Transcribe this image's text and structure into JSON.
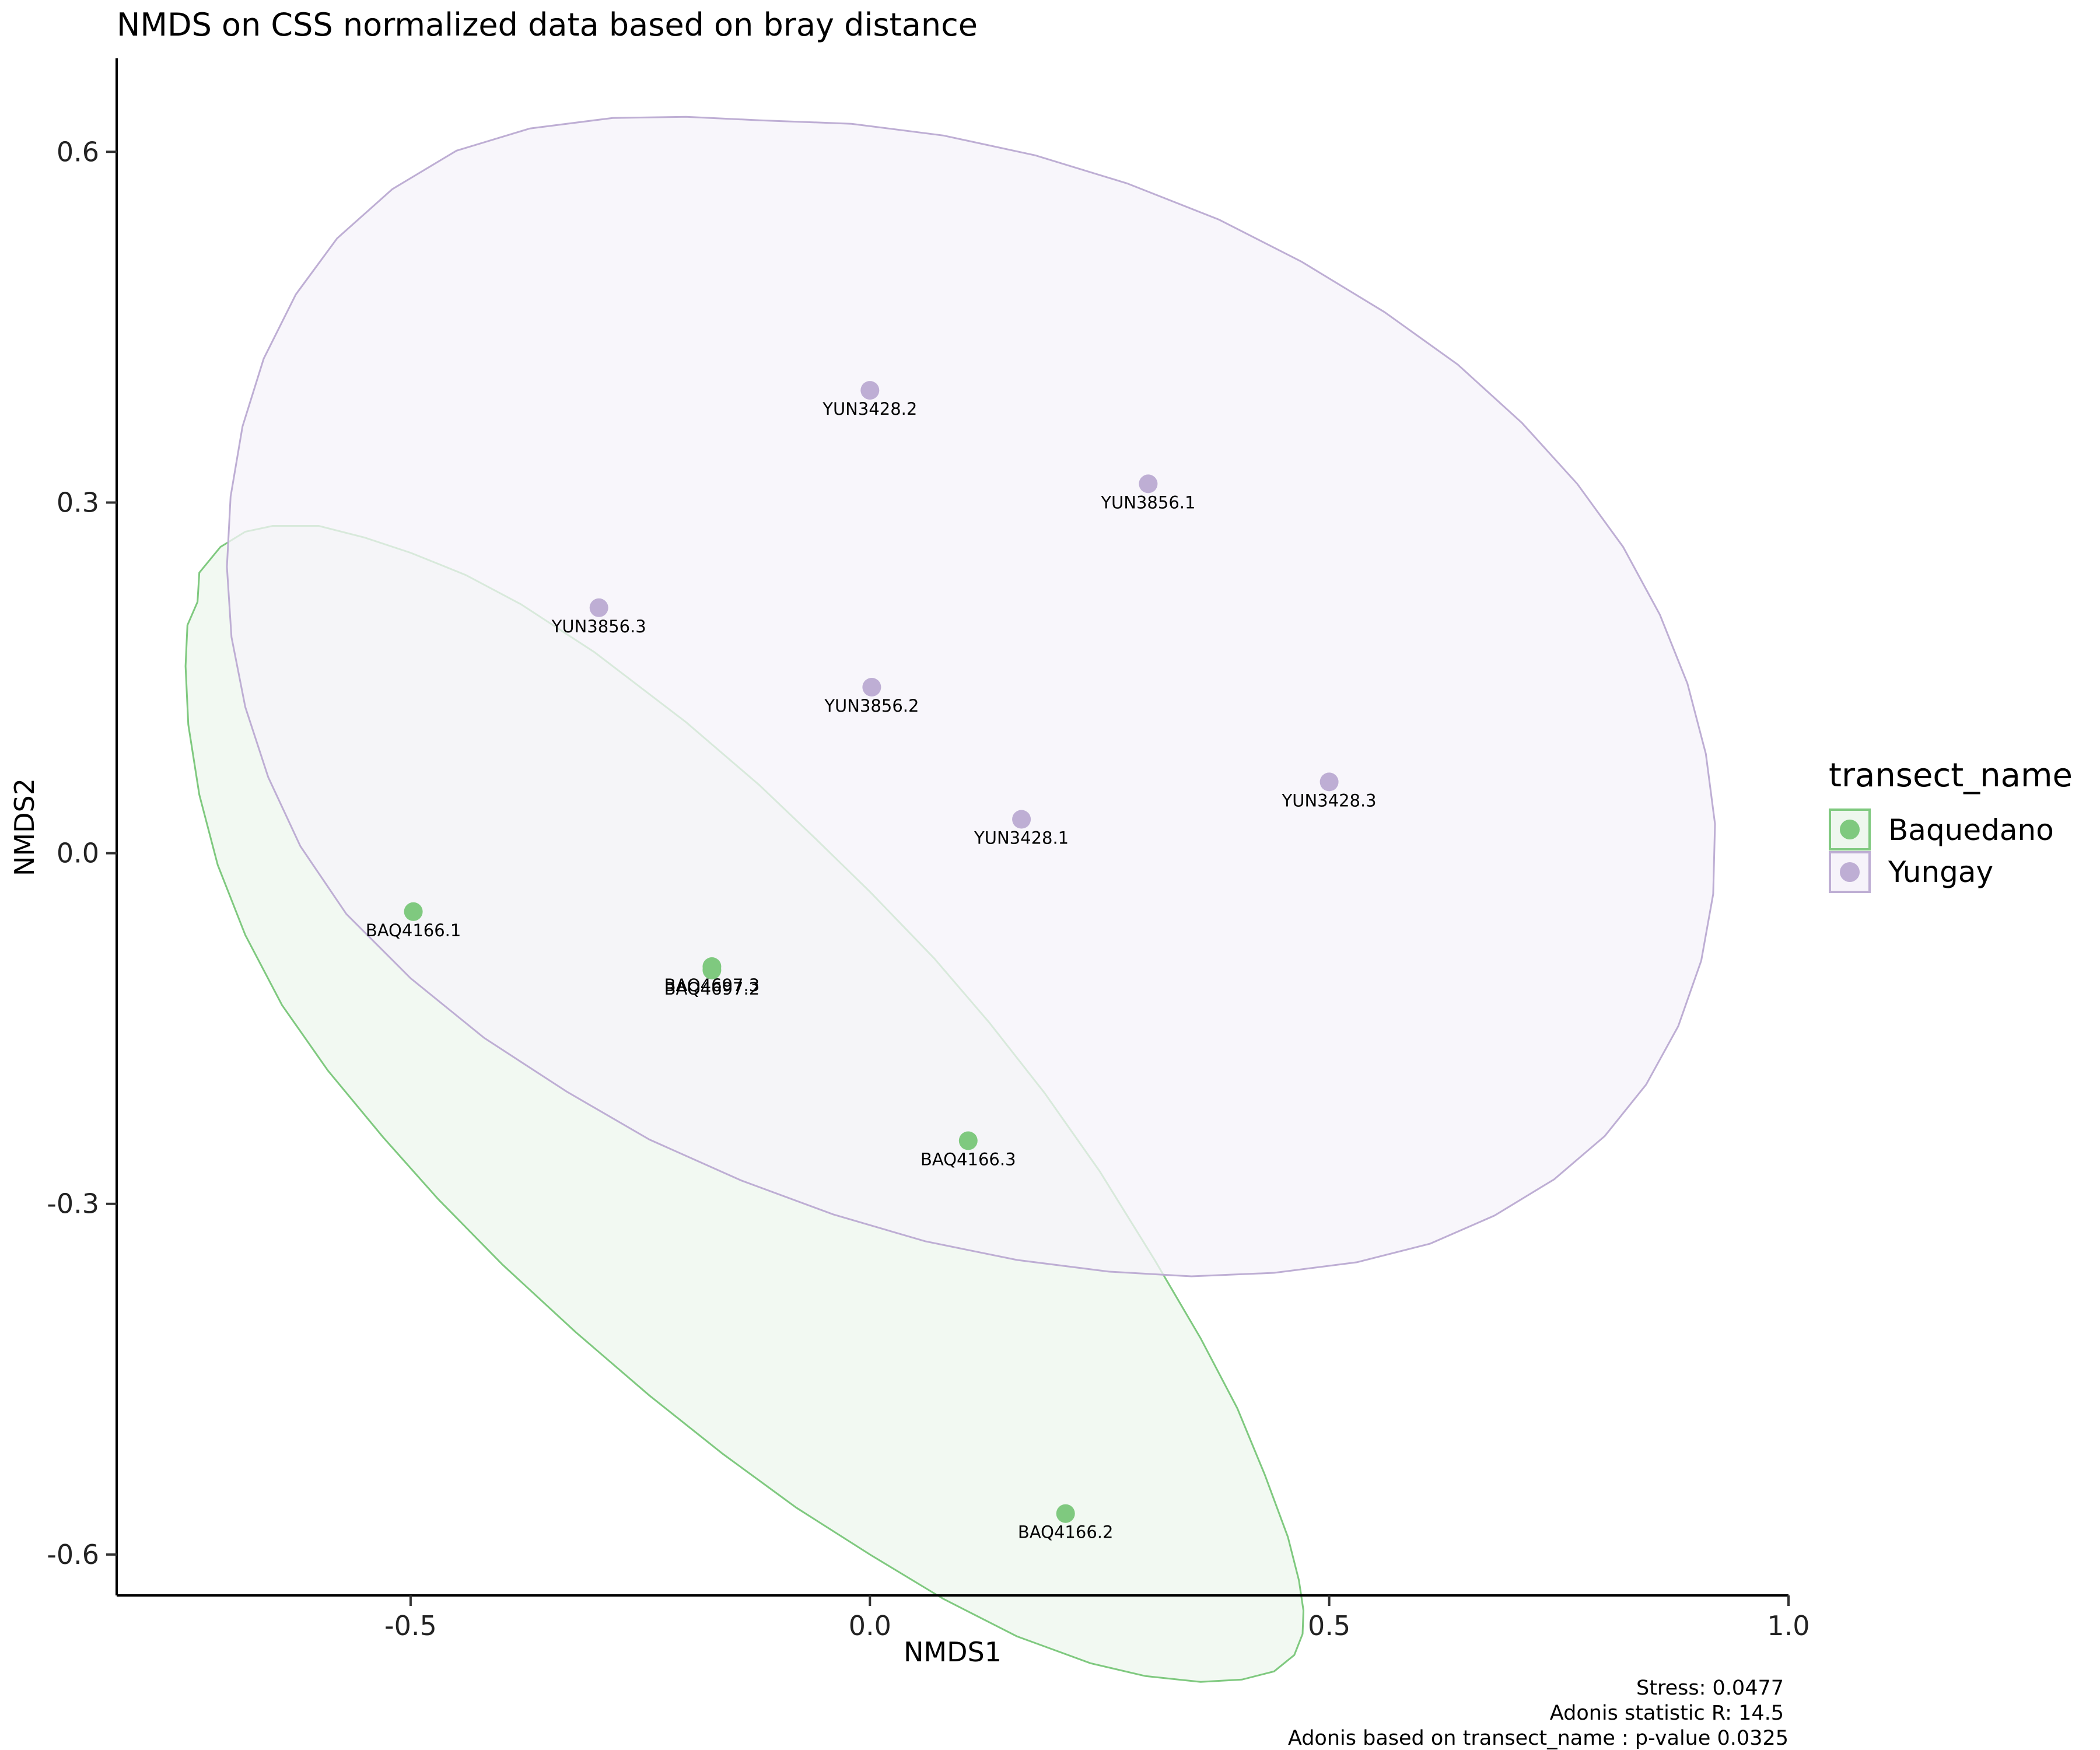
{
  "chart_data": {
    "type": "scatter",
    "title": "NMDS on CSS normalized data based on bray distance",
    "xlabel": "NMDS1",
    "ylabel": "NMDS2",
    "xlim": [
      -0.82,
      1.0
    ],
    "ylim": [
      -0.635,
      0.68
    ],
    "xticks": [
      -0.5,
      0.0,
      0.5,
      1.0
    ],
    "xtick_labels": [
      "-0.5",
      "0.0",
      "0.5",
      "1.0"
    ],
    "yticks": [
      -0.6,
      -0.3,
      0.0,
      0.3,
      0.6
    ],
    "ytick_labels": [
      "-0.6",
      "-0.3",
      "0.0",
      "0.3",
      "0.6"
    ],
    "grid": false,
    "legend": {
      "title": "transect_name",
      "placement": "right",
      "entries": [
        "Baquedano",
        "Yungay"
      ]
    },
    "series": [
      {
        "name": "Baquedano",
        "color": "#7fc97f",
        "fill": "#eef7ee",
        "points": [
          {
            "label": "BAQ4166.1",
            "x": -0.497,
            "y": -0.05
          },
          {
            "label": "BAQ4697.3",
            "x": -0.172,
            "y": -0.097
          },
          {
            "label": "BAQ4697.2",
            "x": -0.172,
            "y": -0.1
          },
          {
            "label": "BAQ4166.3",
            "x": 0.107,
            "y": -0.246
          },
          {
            "label": "BAQ4166.2",
            "x": 0.213,
            "y": -0.565
          }
        ],
        "ellipse": [
          [
            -0.732,
            0.215
          ],
          [
            -0.73,
            0.24
          ],
          [
            -0.707,
            0.262
          ],
          [
            -0.68,
            0.275
          ],
          [
            -0.65,
            0.28
          ],
          [
            -0.6,
            0.28
          ],
          [
            -0.55,
            0.27
          ],
          [
            -0.5,
            0.257
          ],
          [
            -0.44,
            0.238
          ],
          [
            -0.38,
            0.213
          ],
          [
            -0.3,
            0.172
          ],
          [
            -0.2,
            0.112
          ],
          [
            -0.12,
            0.058
          ],
          [
            -0.06,
            0.013
          ],
          [
            0.0,
            -0.033
          ],
          [
            0.07,
            -0.09
          ],
          [
            0.13,
            -0.145
          ],
          [
            0.19,
            -0.205
          ],
          [
            0.25,
            -0.272
          ],
          [
            0.31,
            -0.348
          ],
          [
            0.36,
            -0.415
          ],
          [
            0.4,
            -0.475
          ],
          [
            0.43,
            -0.532
          ],
          [
            0.455,
            -0.585
          ],
          [
            0.467,
            -0.622
          ],
          [
            0.472,
            -0.648
          ],
          [
            0.471,
            -0.668
          ],
          [
            0.462,
            -0.686
          ],
          [
            0.44,
            -0.7
          ],
          [
            0.405,
            -0.707
          ],
          [
            0.36,
            -0.709
          ],
          [
            0.3,
            -0.704
          ],
          [
            0.24,
            -0.693
          ],
          [
            0.16,
            -0.67
          ],
          [
            0.08,
            -0.638
          ],
          [
            0.0,
            -0.6
          ],
          [
            -0.08,
            -0.56
          ],
          [
            -0.16,
            -0.514
          ],
          [
            -0.24,
            -0.464
          ],
          [
            -0.32,
            -0.41
          ],
          [
            -0.4,
            -0.352
          ],
          [
            -0.47,
            -0.296
          ],
          [
            -0.53,
            -0.243
          ],
          [
            -0.59,
            -0.186
          ],
          [
            -0.64,
            -0.13
          ],
          [
            -0.68,
            -0.07
          ],
          [
            -0.71,
            -0.01
          ],
          [
            -0.73,
            0.05
          ],
          [
            -0.742,
            0.11
          ],
          [
            -0.745,
            0.16
          ],
          [
            -0.743,
            0.195
          ]
        ]
      },
      {
        "name": "Yungay",
        "color": "#beaed4",
        "fill": "#f6f3fa",
        "points": [
          {
            "label": "YUN3428.2",
            "x": 0.0,
            "y": 0.396
          },
          {
            "label": "YUN3856.1",
            "x": 0.303,
            "y": 0.316
          },
          {
            "label": "YUN3856.3",
            "x": -0.295,
            "y": 0.21
          },
          {
            "label": "YUN3856.2",
            "x": 0.002,
            "y": 0.142
          },
          {
            "label": "YUN3428.3",
            "x": 0.5,
            "y": 0.061
          },
          {
            "label": "YUN3428.1",
            "x": 0.165,
            "y": 0.029
          }
        ],
        "ellipse": [
          [
            -0.12,
            0.627
          ],
          [
            -0.02,
            0.624
          ],
          [
            0.08,
            0.614
          ],
          [
            0.18,
            0.597
          ],
          [
            0.28,
            0.573
          ],
          [
            0.38,
            0.542
          ],
          [
            0.47,
            0.506
          ],
          [
            0.56,
            0.463
          ],
          [
            0.64,
            0.418
          ],
          [
            0.71,
            0.368
          ],
          [
            0.77,
            0.316
          ],
          [
            0.82,
            0.262
          ],
          [
            0.86,
            0.204
          ],
          [
            0.89,
            0.145
          ],
          [
            0.91,
            0.085
          ],
          [
            0.92,
            0.025
          ],
          [
            0.918,
            -0.035
          ],
          [
            0.905,
            -0.092
          ],
          [
            0.88,
            -0.148
          ],
          [
            0.845,
            -0.198
          ],
          [
            0.8,
            -0.242
          ],
          [
            0.745,
            -0.279
          ],
          [
            0.68,
            -0.31
          ],
          [
            0.61,
            -0.334
          ],
          [
            0.53,
            -0.35
          ],
          [
            0.44,
            -0.359
          ],
          [
            0.35,
            -0.362
          ],
          [
            0.26,
            -0.358
          ],
          [
            0.16,
            -0.348
          ],
          [
            0.06,
            -0.332
          ],
          [
            -0.04,
            -0.309
          ],
          [
            -0.14,
            -0.28
          ],
          [
            -0.24,
            -0.245
          ],
          [
            -0.33,
            -0.204
          ],
          [
            -0.42,
            -0.158
          ],
          [
            -0.5,
            -0.107
          ],
          [
            -0.57,
            -0.052
          ],
          [
            -0.62,
            0.006
          ],
          [
            -0.655,
            0.065
          ],
          [
            -0.68,
            0.125
          ],
          [
            -0.695,
            0.185
          ],
          [
            -0.7,
            0.245
          ],
          [
            -0.696,
            0.305
          ],
          [
            -0.683,
            0.365
          ],
          [
            -0.66,
            0.423
          ],
          [
            -0.625,
            0.478
          ],
          [
            -0.58,
            0.526
          ],
          [
            -0.52,
            0.568
          ],
          [
            -0.45,
            0.601
          ],
          [
            -0.37,
            0.62
          ],
          [
            -0.28,
            0.629
          ],
          [
            -0.2,
            0.63
          ]
        ]
      }
    ],
    "annotations": [
      "Stress: 0.0477",
      "Adonis statistic R: 14.5",
      "Adonis based on  transect_name : p-value 0.0325"
    ]
  }
}
